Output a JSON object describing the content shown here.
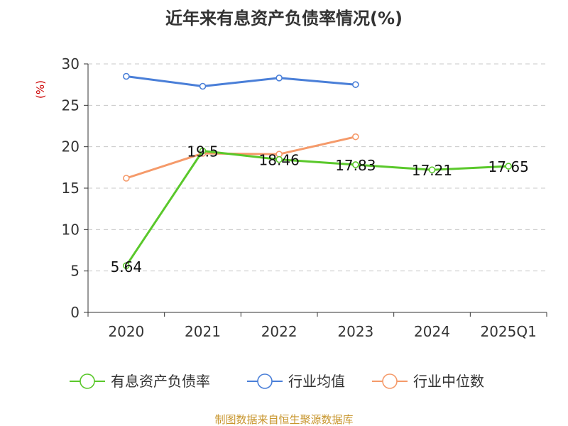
{
  "chart_data": {
    "type": "line",
    "title": "近年来有息资产负债率情况(%)",
    "ylabel": "(%)",
    "categories": [
      "2020",
      "2021",
      "2022",
      "2023",
      "2024",
      "2025Q1"
    ],
    "ylim": [
      0,
      30
    ],
    "yticks": [
      0,
      5,
      10,
      15,
      20,
      25,
      30
    ],
    "grid": true,
    "legend_position": "bottom",
    "series": [
      {
        "name": "有息资产负债率",
        "color": "#5ac82b",
        "values": [
          5.64,
          19.5,
          18.46,
          17.83,
          17.21,
          17.65
        ],
        "labels": [
          "5.64",
          "19.5",
          "18.46",
          "17.83",
          "17.21",
          "17.65"
        ]
      },
      {
        "name": "行业均值",
        "color": "#4a7fd8",
        "values": [
          28.5,
          27.3,
          28.3,
          27.5,
          null,
          null
        ]
      },
      {
        "name": "行业中位数",
        "color": "#f59a6a",
        "values": [
          16.2,
          19.2,
          19.1,
          21.2,
          null,
          null
        ]
      }
    ],
    "source": "制图数据来自恒生聚源数据库"
  }
}
